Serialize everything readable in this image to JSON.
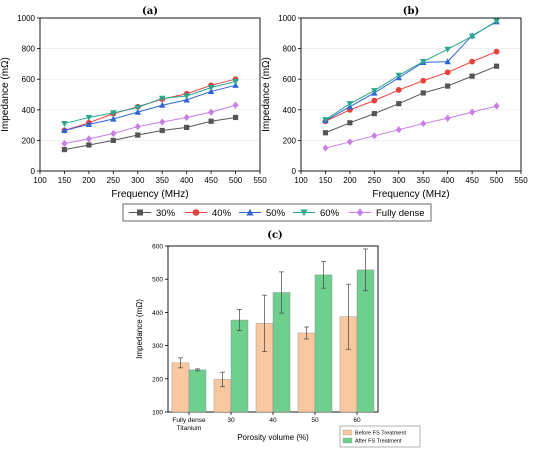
{
  "chart_data": [
    {
      "id": "a",
      "panel_label": "(a)",
      "type": "line",
      "xlabel": "Frequency (MHz)",
      "ylabel": "Impedance (mΩ)",
      "xlim": [
        100,
        550
      ],
      "ylim": [
        0,
        1000
      ],
      "xticks": [
        100,
        150,
        200,
        250,
        300,
        350,
        400,
        450,
        500,
        550
      ],
      "yticks": [
        0,
        200,
        400,
        600,
        800,
        1000
      ],
      "x": [
        150,
        200,
        250,
        300,
        350,
        400,
        450,
        500
      ],
      "series": [
        {
          "name": "30%",
          "color": "#555555",
          "marker": "square",
          "values": [
            140,
            170,
            200,
            235,
            265,
            285,
            325,
            350
          ]
        },
        {
          "name": "40%",
          "color": "#e8413c",
          "marker": "circle",
          "values": [
            265,
            315,
            375,
            420,
            470,
            505,
            560,
            600
          ]
        },
        {
          "name": "50%",
          "color": "#2f64d6",
          "marker": "triangle-up",
          "values": [
            265,
            305,
            340,
            385,
            430,
            465,
            520,
            560
          ]
        },
        {
          "name": "60%",
          "color": "#27a88c",
          "marker": "triangle-down",
          "values": [
            310,
            350,
            380,
            415,
            475,
            490,
            545,
            585
          ]
        },
        {
          "name": "Fully dense",
          "color": "#c77de3",
          "marker": "diamond",
          "values": [
            180,
            210,
            245,
            290,
            320,
            350,
            385,
            430
          ]
        }
      ]
    },
    {
      "id": "b",
      "panel_label": "(b)",
      "type": "line",
      "xlabel": "Frequency (MHz)",
      "ylabel": "Impedance (mΩ)",
      "xlim": [
        100,
        550
      ],
      "ylim": [
        0,
        1000
      ],
      "xticks": [
        100,
        150,
        200,
        250,
        300,
        350,
        400,
        450,
        500,
        550
      ],
      "yticks": [
        0,
        200,
        400,
        600,
        800,
        1000
      ],
      "x": [
        150,
        200,
        250,
        300,
        350,
        400,
        450,
        500
      ],
      "series": [
        {
          "name": "30%",
          "color": "#555555",
          "marker": "square",
          "values": [
            250,
            315,
            375,
            440,
            510,
            555,
            620,
            685
          ]
        },
        {
          "name": "40%",
          "color": "#e8413c",
          "marker": "circle",
          "values": [
            325,
            400,
            460,
            530,
            590,
            645,
            715,
            780
          ]
        },
        {
          "name": "50%",
          "color": "#2f64d6",
          "marker": "triangle-up",
          "values": [
            330,
            420,
            510,
            610,
            710,
            715,
            885,
            975
          ]
        },
        {
          "name": "60%",
          "color": "#27a88c",
          "marker": "triangle-down",
          "values": [
            335,
            440,
            525,
            625,
            715,
            795,
            880,
            980
          ]
        },
        {
          "name": "Fully dense",
          "color": "#c77de3",
          "marker": "diamond",
          "values": [
            150,
            190,
            230,
            270,
            310,
            345,
            385,
            425
          ]
        }
      ]
    },
    {
      "id": "c",
      "panel_label": "(c)",
      "type": "bar",
      "xlabel": "Porosity volume (%)",
      "ylabel": "Impedance (mΩ)",
      "ylim": [
        100,
        600
      ],
      "yticks": [
        100,
        200,
        300,
        400,
        500,
        600
      ],
      "categories": [
        "Fully dense Titanium",
        "30",
        "40",
        "50",
        "60"
      ],
      "category_lines": [
        [
          "Fully dense",
          "Titanium"
        ],
        [
          "30"
        ],
        [
          "40"
        ],
        [
          "50"
        ],
        [
          "60"
        ]
      ],
      "series": [
        {
          "name": "Before FS Treatment",
          "color": "#f9c8a0",
          "values": [
            248,
            198,
            367,
            338,
            387
          ],
          "errors": [
            15,
            22,
            85,
            18,
            98
          ]
        },
        {
          "name": "After FS Treatment",
          "color": "#6fcf8f",
          "values": [
            227,
            377,
            460,
            513,
            528
          ],
          "errors": [
            3,
            32,
            62,
            40,
            63
          ]
        }
      ]
    }
  ]
}
